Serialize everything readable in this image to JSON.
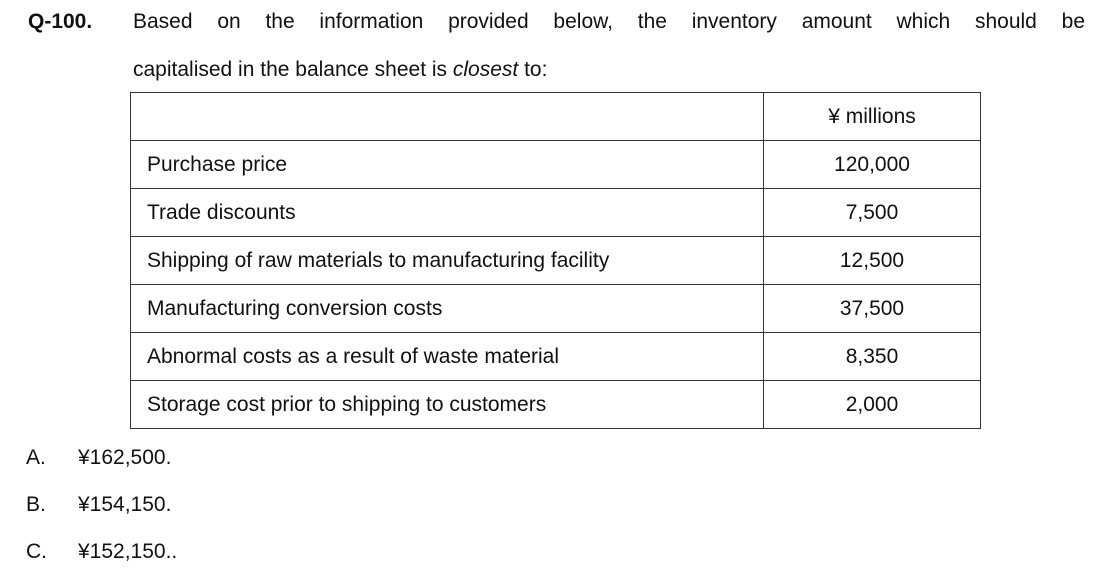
{
  "question": {
    "number": "Q-100.",
    "line_1": "Based on the information provided below, the inventory amount which should be",
    "line_2": {
      "before": "capitalised in the balance sheet is ",
      "emphasis": "closest",
      "after": " to:"
    }
  },
  "table": {
    "header": "¥ millions",
    "rows": [
      [
        "Purchase price",
        "120,000"
      ],
      [
        "Trade discounts",
        "7,500"
      ],
      [
        "Shipping of raw materials to manufacturing facility",
        "12,500"
      ],
      [
        "Manufacturing conversion costs",
        "37,500"
      ],
      [
        "Abnormal costs as a result of waste material",
        "8,350"
      ],
      [
        "Storage cost prior to shipping to customers",
        "2,000"
      ]
    ]
  },
  "options": [
    {
      "letter": "A.",
      "text": "¥162,500."
    },
    {
      "letter": "B.",
      "text": "¥154,150."
    },
    {
      "letter": "C.",
      "text": "¥152,150.."
    }
  ]
}
